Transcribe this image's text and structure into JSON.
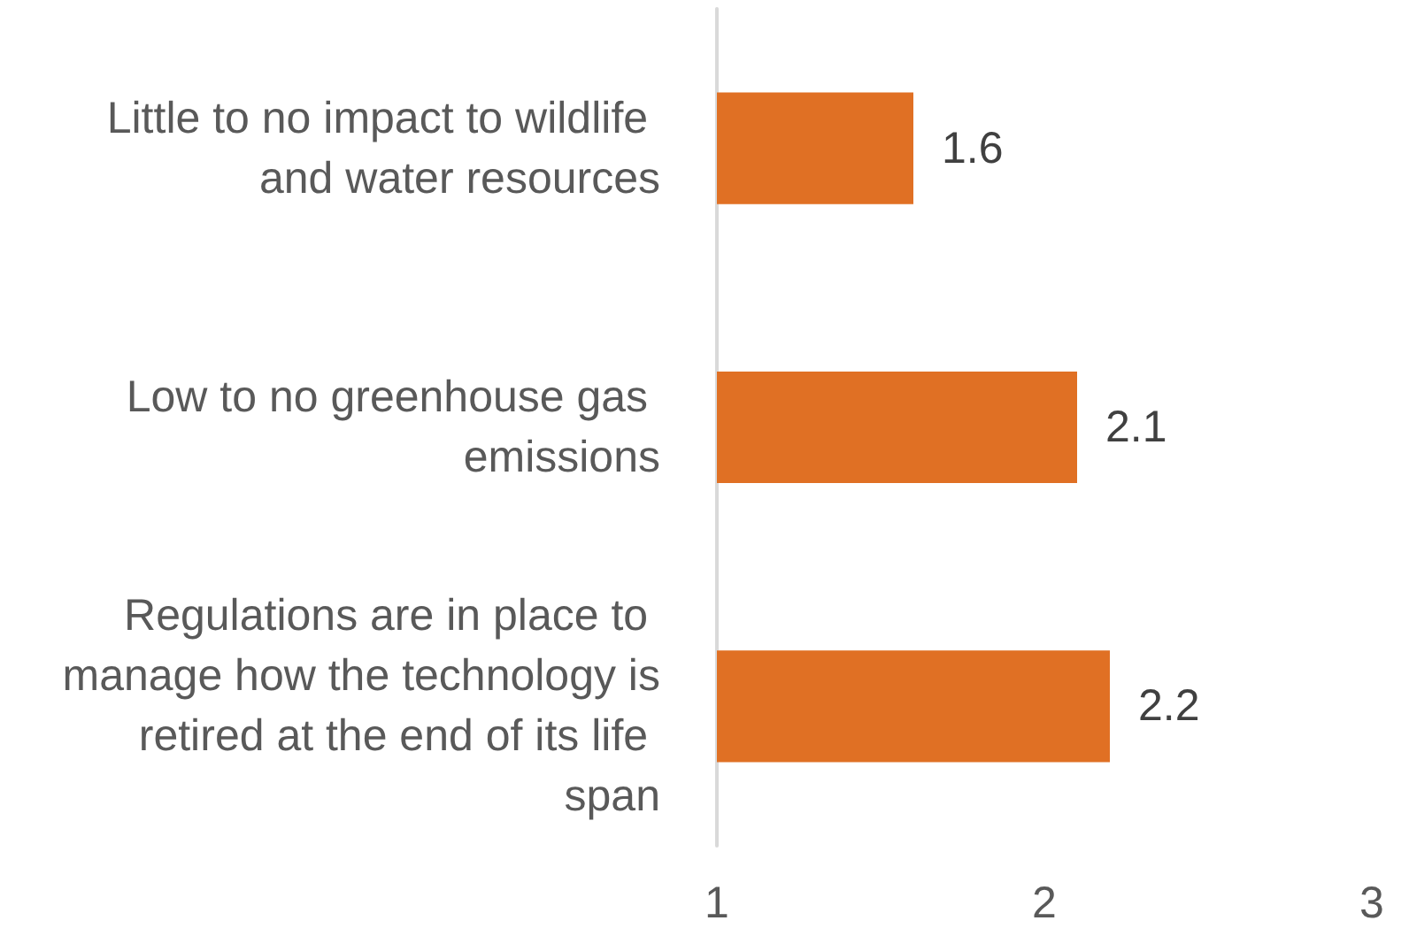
{
  "chart_data": {
    "type": "bar",
    "orientation": "horizontal",
    "categories": [
      "Little to no impact to wildlife and water resources",
      "Low to no greenhouse gas emissions",
      "Regulations are in place to manage how the technology is retired at the end of its life span"
    ],
    "values": [
      1.6,
      2.1,
      2.2
    ],
    "color": "#e07024",
    "xlim": [
      1,
      3
    ],
    "xticks": [
      1,
      2,
      3
    ],
    "data_labels": true
  }
}
